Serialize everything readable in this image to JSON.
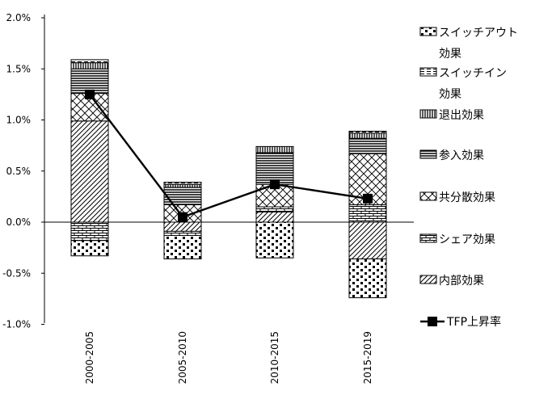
{
  "chart_data": {
    "type": "bar",
    "categories": [
      "2000-2005",
      "2005-2010",
      "2010-2015",
      "2015-2019"
    ],
    "ylim": [
      -1.0,
      2.0
    ],
    "yticks": [
      "-1.0%",
      "-0.5%",
      "0.0%",
      "0.5%",
      "1.0%",
      "1.5%",
      "2.0%"
    ],
    "ytick_values": [
      -1.0,
      -0.5,
      0.0,
      0.5,
      1.0,
      1.5,
      2.0
    ],
    "grid": false,
    "legend_position": "right",
    "series": [
      {
        "name": "内部効果",
        "pattern": "diag",
        "values": [
          0.99,
          -0.09,
          0.1,
          -0.36
        ]
      },
      {
        "name": "シェア効果",
        "pattern": "hbrick",
        "values": [
          -0.18,
          -0.04,
          0.05,
          0.17
        ]
      },
      {
        "name": "共分散効果",
        "pattern": "diamond",
        "values": [
          0.27,
          0.17,
          0.22,
          0.5
        ]
      },
      {
        "name": "参入効果",
        "pattern": "hlines",
        "values": [
          0.24,
          0.17,
          0.31,
          0.15
        ]
      },
      {
        "name": "退出効果",
        "pattern": "vlines",
        "values": [
          0.06,
          0.03,
          0.06,
          0.05
        ]
      },
      {
        "name": "スイッチイン効果",
        "pattern": "dash",
        "values": [
          0.03,
          0.02,
          0.0,
          0.02
        ]
      },
      {
        "name": "スイッチアウト効果",
        "pattern": "brick",
        "values": [
          -0.15,
          -0.23,
          -0.35,
          -0.38
        ]
      }
    ],
    "line_series": {
      "name": "TFP上昇率",
      "values": [
        1.25,
        0.05,
        0.37,
        0.23
      ]
    }
  },
  "legend": [
    {
      "key": "switch_out",
      "label_lines": [
        "スイッチアウト",
        "効果"
      ],
      "pattern": "brick",
      "type": "box"
    },
    {
      "key": "switch_in",
      "label_lines": [
        "スイッチイン",
        "効果"
      ],
      "pattern": "dash",
      "type": "box"
    },
    {
      "key": "exit",
      "label_lines": [
        "退出効果"
      ],
      "pattern": "vlines",
      "type": "box"
    },
    {
      "key": "entry",
      "label_lines": [
        "参入効果"
      ],
      "pattern": "hlines",
      "type": "box"
    },
    {
      "key": "cov",
      "label_lines": [
        "共分散効果"
      ],
      "pattern": "diamond",
      "type": "box"
    },
    {
      "key": "share",
      "label_lines": [
        "シェア効果"
      ],
      "pattern": "hbrick",
      "type": "box"
    },
    {
      "key": "within",
      "label_lines": [
        "内部効果"
      ],
      "pattern": "diag",
      "type": "box"
    },
    {
      "key": "tfp",
      "label_lines": [
        "TFP上昇率"
      ],
      "pattern": "",
      "type": "line"
    }
  ]
}
